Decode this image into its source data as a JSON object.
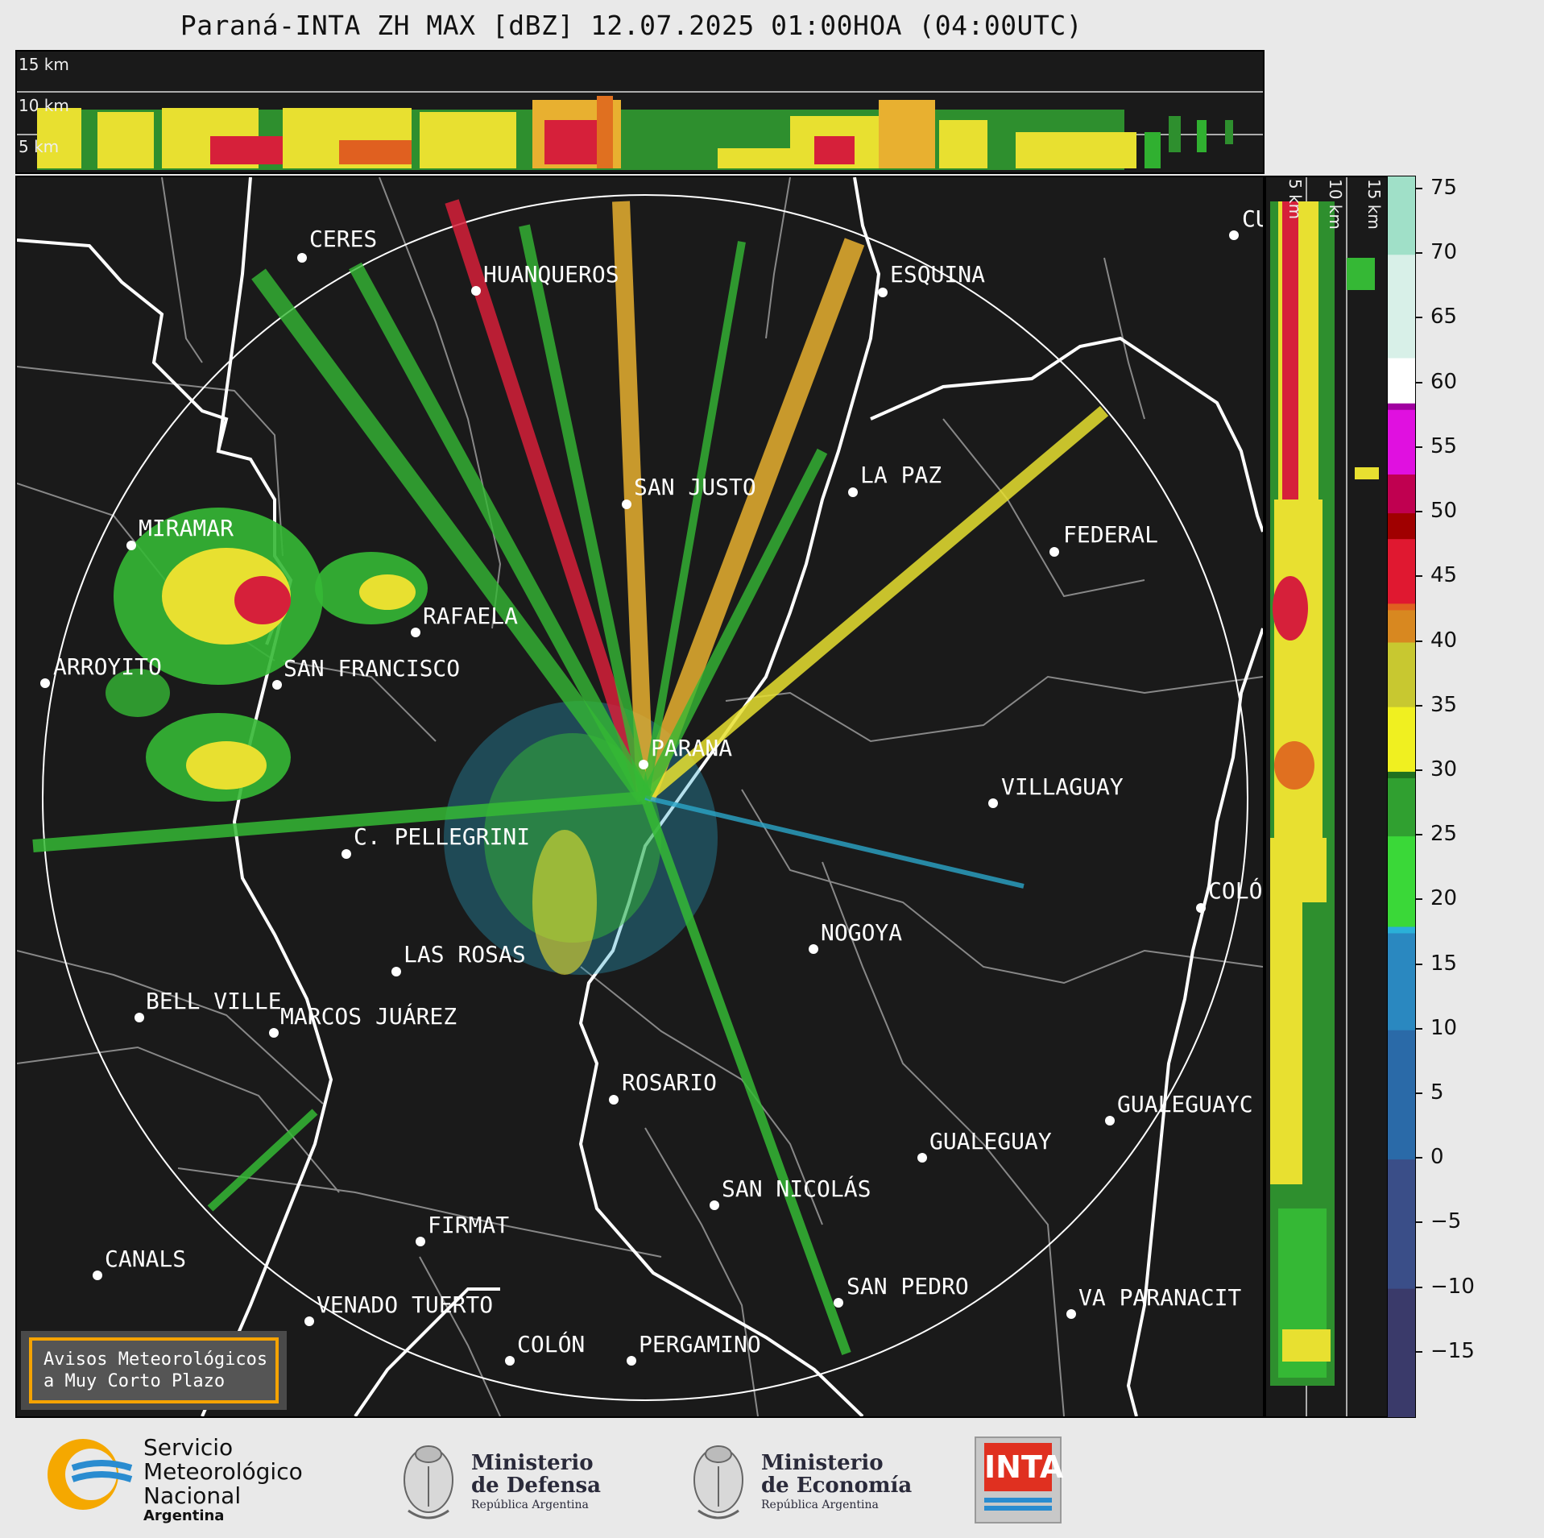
{
  "title": "Paraná-INTA ZH MAX [dBZ] 12.07.2025 01:00HOA (04:00UTC)",
  "altitude_labels": {
    "top": [
      "15 km",
      "10 km",
      "5 km"
    ],
    "side": [
      "5 km",
      "10 km",
      "15 km"
    ]
  },
  "colorbar": {
    "unit": "dBZ",
    "tick_labels": [
      "75",
      "70",
      "65",
      "60",
      "55",
      "50",
      "45",
      "40",
      "35",
      "30",
      "25",
      "20",
      "15",
      "10",
      "5",
      "0",
      "−5",
      "−10",
      "−15"
    ],
    "range": [
      -20,
      76
    ]
  },
  "cities": [
    {
      "name": "CERES"
    },
    {
      "name": "HUANQUEROS"
    },
    {
      "name": "ESQUINA"
    },
    {
      "name": "CU"
    },
    {
      "name": "SAN JUSTO"
    },
    {
      "name": "LA PAZ"
    },
    {
      "name": "FEDERAL"
    },
    {
      "name": "MIRAMAR"
    },
    {
      "name": "RAFAELA"
    },
    {
      "name": "ARROYITO"
    },
    {
      "name": "SAN FRANCISCO"
    },
    {
      "name": "PARANA"
    },
    {
      "name": "VILLAGUAY"
    },
    {
      "name": "C. PELLEGRINI"
    },
    {
      "name": "COLÓ"
    },
    {
      "name": "NOGOYA"
    },
    {
      "name": "LAS ROSAS"
    },
    {
      "name": "BELL VILLE"
    },
    {
      "name": "MARCOS JUÁREZ"
    },
    {
      "name": "ROSARIO"
    },
    {
      "name": "GUALEGUAYC"
    },
    {
      "name": "GUALEGUAY"
    },
    {
      "name": "SAN NICOLÁS"
    },
    {
      "name": "FIRMAT"
    },
    {
      "name": "CANALS"
    },
    {
      "name": "SAN PEDRO"
    },
    {
      "name": "VENADO TUERTO"
    },
    {
      "name": "VA PARANACIT"
    },
    {
      "name": "COLÓN"
    },
    {
      "name": "PERGAMINO"
    }
  ],
  "avisos": {
    "line1": "Avisos Meteorológicos",
    "line2": "a Muy Corto Plazo"
  },
  "footer": {
    "smn": {
      "l1": "Servicio",
      "l2": "Meteorológico",
      "l3": "Nacional",
      "l4": "Argentina"
    },
    "defensa": {
      "l1": "Ministerio",
      "l2": "de Defensa",
      "l3": "República Argentina"
    },
    "economia": {
      "l1": "Ministerio",
      "l2": "de Economía",
      "l3": "República Argentina"
    },
    "inta": {
      "text": "INTA"
    }
  }
}
